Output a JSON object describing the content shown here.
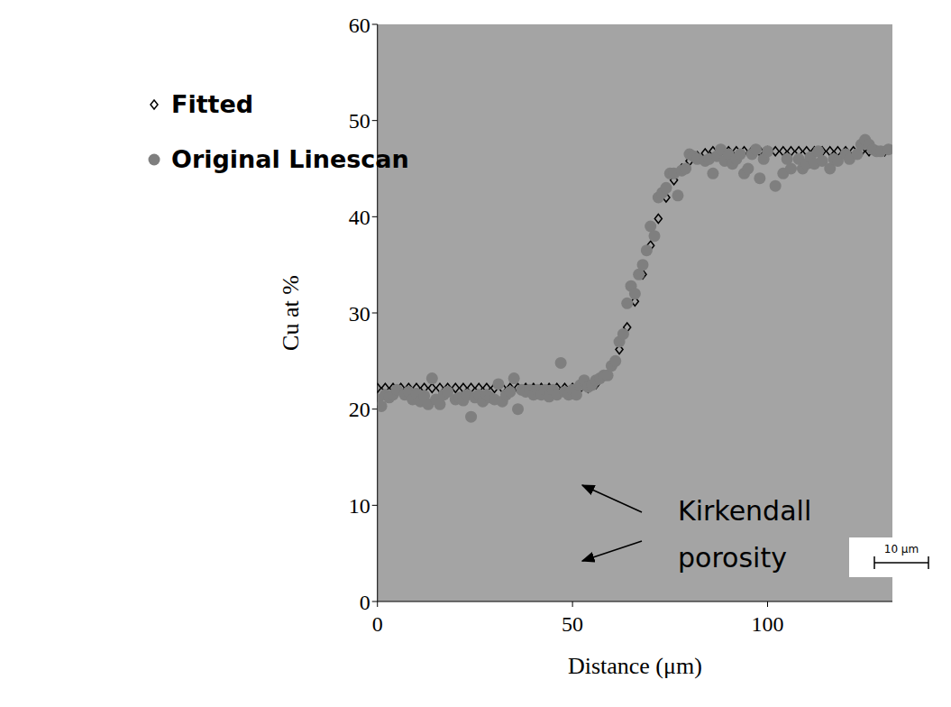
{
  "chart_data": {
    "type": "scatter",
    "xlabel": "Distance (μm)",
    "ylabel": "Cu at %",
    "xlim": [
      0,
      132
    ],
    "xticks": [
      0,
      50,
      100
    ],
    "ylim": [
      0,
      60
    ],
    "yticks": [
      0,
      10,
      20,
      30,
      40,
      50,
      60
    ],
    "grid": false,
    "legend": "upper left",
    "annotations": [
      "Kirkendall porosity",
      "10 μm"
    ],
    "series": [
      {
        "name": "Fitted",
        "color": "#000000",
        "marker": "diamond",
        "x": [
          0,
          2,
          4,
          6,
          8,
          10,
          12,
          14,
          16,
          18,
          20,
          22,
          24,
          26,
          28,
          30,
          32,
          34,
          36,
          38,
          40,
          42,
          44,
          46,
          48,
          50,
          52,
          54,
          56,
          58,
          60,
          62,
          64,
          66,
          68,
          70,
          72,
          74,
          76,
          78,
          80,
          82,
          84,
          86,
          88,
          90,
          92,
          94,
          96,
          98,
          100,
          102,
          104,
          106,
          108,
          110,
          112,
          114,
          116,
          118,
          120,
          122,
          124,
          126,
          128,
          130
        ],
        "values": [
          22.2,
          22.2,
          22.2,
          22.2,
          22.2,
          22.2,
          22.2,
          22.2,
          22.2,
          22.2,
          22.2,
          22.2,
          22.2,
          22.2,
          22.2,
          22.2,
          22.2,
          22.2,
          22.2,
          22.2,
          22.2,
          22.2,
          22.2,
          22.2,
          22.2,
          22.2,
          22.2,
          22.2,
          22.6,
          23.4,
          24.6,
          26.2,
          28.5,
          31.2,
          34,
          37,
          39.8,
          42,
          43.8,
          45,
          45.8,
          46.3,
          46.6,
          46.8,
          46.8,
          46.8,
          46.8,
          46.8,
          46.8,
          46.8,
          46.8,
          46.8,
          46.8,
          46.8,
          46.8,
          46.8,
          46.8,
          46.8,
          46.8,
          46.8,
          46.8,
          46.8,
          46.8,
          46.8,
          46.8,
          46.8
        ]
      },
      {
        "name": "Original Linescan",
        "color": "#7f7f7f",
        "marker": "circle",
        "x": [
          0,
          1,
          2,
          3,
          4,
          5,
          7,
          8,
          9,
          10,
          11,
          12,
          13,
          14,
          15,
          16,
          17,
          18,
          20,
          21,
          22,
          23,
          24,
          25,
          26,
          27,
          28,
          29,
          30,
          31,
          32,
          33,
          34,
          35,
          36,
          37,
          38,
          39,
          40,
          41,
          42,
          43,
          44,
          45,
          46,
          47,
          48,
          49,
          50,
          51,
          52,
          53,
          54,
          55,
          56,
          57,
          58,
          59,
          60,
          61,
          62,
          63,
          64,
          65,
          66,
          67,
          68,
          69,
          70,
          71,
          72,
          73,
          74,
          75,
          76,
          77,
          78,
          79,
          80,
          81,
          82,
          84,
          85,
          86,
          87,
          88,
          89,
          90,
          91,
          92,
          93,
          94,
          95,
          96,
          97,
          98,
          99,
          100,
          102,
          104,
          105,
          106,
          108,
          109,
          110,
          111,
          112,
          113,
          114,
          116,
          117,
          118,
          120,
          121,
          123,
          124,
          125,
          126,
          127,
          128,
          129,
          131
        ],
        "values": [
          21,
          20.3,
          21.5,
          21.2,
          21.5,
          22,
          21.5,
          21.8,
          21,
          21.6,
          20.8,
          21.4,
          20.5,
          23.2,
          21,
          20.5,
          21.5,
          21.8,
          21,
          21.2,
          20.9,
          21.5,
          19.2,
          21.2,
          21.5,
          20.8,
          21.5,
          21.2,
          21,
          22.6,
          20.8,
          21.5,
          21.8,
          23.2,
          20,
          22,
          21.8,
          22,
          21.5,
          22,
          21.5,
          22,
          21.3,
          22,
          21.5,
          24.8,
          21.8,
          21.5,
          22,
          21.5,
          22.5,
          23,
          22.3,
          22.5,
          23,
          23.2,
          23.5,
          23.5,
          24.5,
          25,
          27,
          27.8,
          31,
          32.8,
          32,
          34,
          35,
          36.5,
          39,
          38,
          42,
          42.5,
          43,
          44.5,
          44.5,
          42.2,
          44.8,
          45,
          46.5,
          46.3,
          46,
          45.8,
          46,
          44.5,
          46.3,
          47,
          45.8,
          46.5,
          45.5,
          46,
          46.5,
          44.5,
          45,
          46.5,
          47,
          44,
          46,
          46.8,
          43.2,
          44.5,
          46,
          45,
          46,
          45,
          45.5,
          46.2,
          45.5,
          46.8,
          45.8,
          45,
          46,
          45.8,
          46.5,
          46,
          46.5,
          47.5,
          48,
          47.5,
          47,
          46.8,
          46.8,
          47
        ]
      }
    ]
  }
}
